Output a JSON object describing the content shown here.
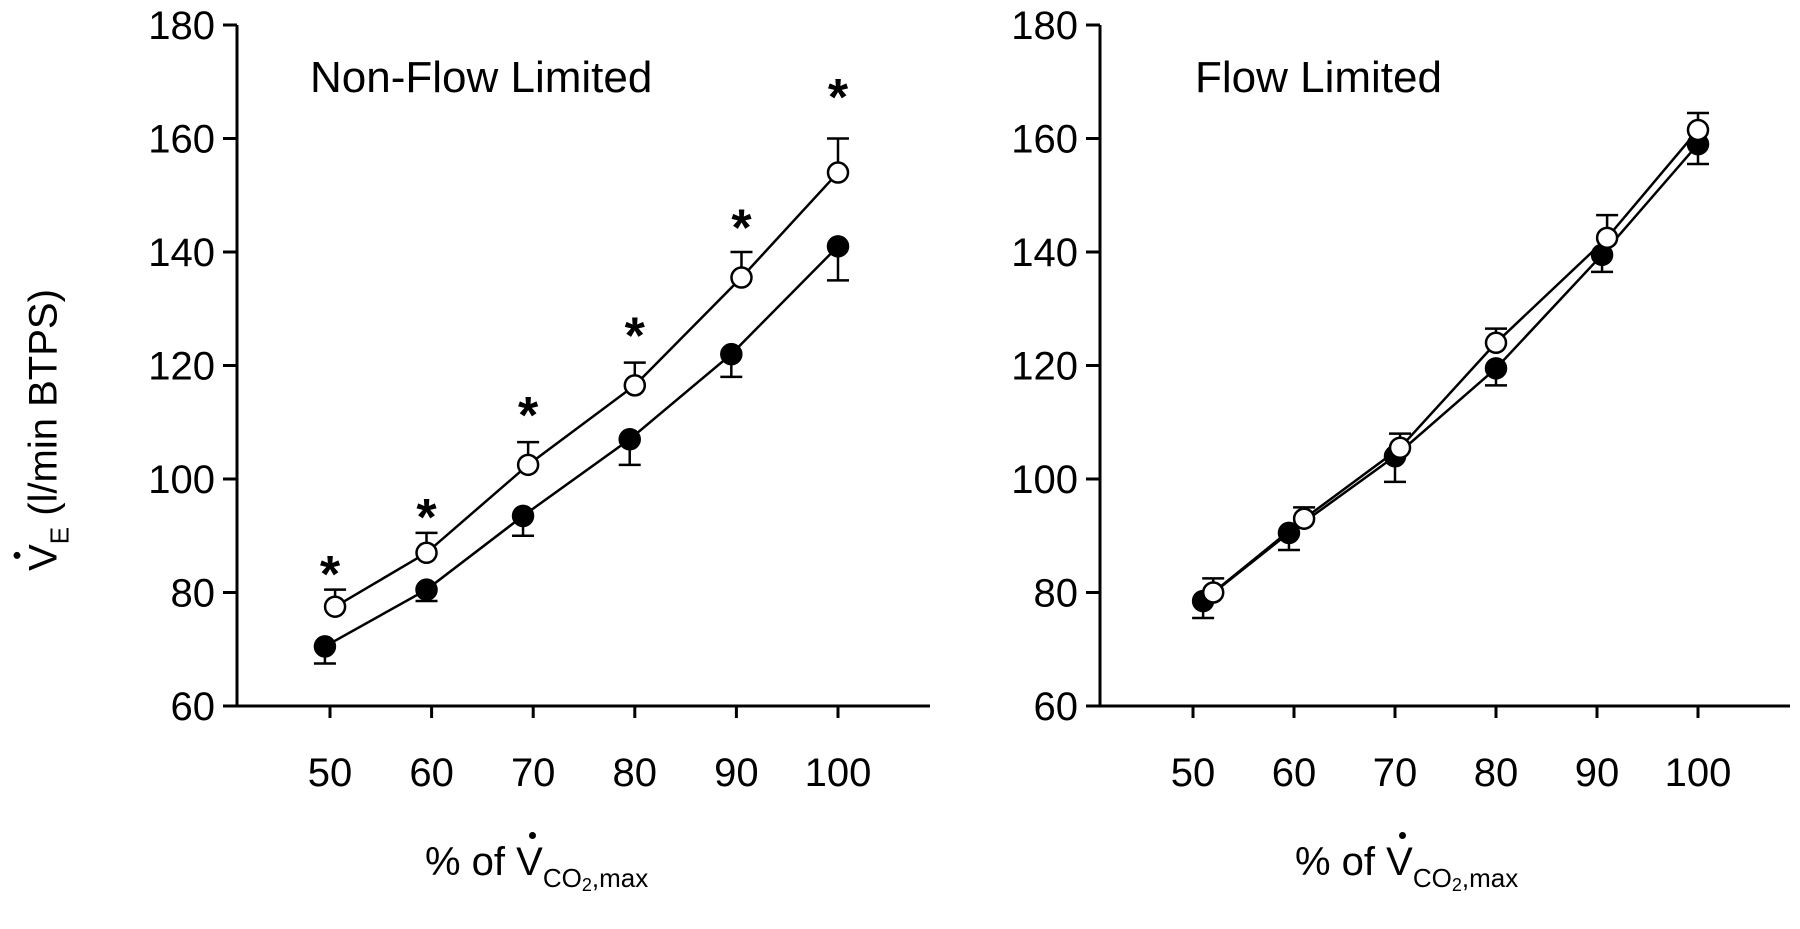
{
  "y_axis_label": {
    "v": "V",
    "sub": "E",
    "rest": " (l/min BTPS)"
  },
  "x_axis_label": {
    "prefix": "% of ",
    "v": "V",
    "sub": "CO",
    "sub2": "2",
    "sub_rest": ",max"
  },
  "chart_data": [
    {
      "type": "line",
      "title": "Non-Flow Limited",
      "ylim": [
        60,
        180
      ],
      "yticks": [
        60,
        80,
        100,
        120,
        140,
        160,
        180
      ],
      "xticks": [
        50,
        60,
        70,
        80,
        90,
        100
      ],
      "series": [
        {
          "marker": "open-circle",
          "x": [
            50.5,
            59.5,
            69.5,
            80,
            90.5,
            100
          ],
          "y": [
            77.5,
            87,
            102.5,
            116.5,
            135.5,
            154
          ],
          "err": [
            3,
            3.5,
            4,
            4,
            4.5,
            6
          ]
        },
        {
          "marker": "filled-circle",
          "x": [
            49.5,
            59.5,
            69,
            79.5,
            89.5,
            100
          ],
          "y": [
            70.5,
            80.5,
            93.5,
            107,
            122,
            141
          ],
          "err": [
            3,
            2,
            3.5,
            4.5,
            4,
            6
          ]
        }
      ],
      "annotations": [
        {
          "text": "*",
          "x": 50,
          "y": 84
        },
        {
          "text": "*",
          "x": 59.5,
          "y": 94
        },
        {
          "text": "*",
          "x": 69.5,
          "y": 112
        },
        {
          "text": "*",
          "x": 80,
          "y": 126
        },
        {
          "text": "*",
          "x": 90.5,
          "y": 145
        },
        {
          "text": "*",
          "x": 100,
          "y": 168
        }
      ]
    },
    {
      "type": "line",
      "title": "Flow Limited",
      "ylim": [
        60,
        180
      ],
      "yticks": [
        60,
        80,
        100,
        120,
        140,
        160,
        180
      ],
      "xticks": [
        50,
        60,
        70,
        80,
        90,
        100
      ],
      "series": [
        {
          "marker": "open-circle",
          "x": [
            52,
            61,
            70.5,
            80,
            91,
            100
          ],
          "y": [
            80,
            93,
            105.5,
            124,
            142.5,
            161.5
          ],
          "err": [
            2.5,
            2,
            2.5,
            2.5,
            4,
            3
          ]
        },
        {
          "marker": "filled-circle",
          "x": [
            51,
            59.5,
            70,
            80,
            90.5,
            100
          ],
          "y": [
            78.5,
            90.5,
            104,
            119.5,
            139.5,
            159
          ],
          "err": [
            3,
            3,
            4.5,
            3,
            3,
            3.5
          ]
        }
      ],
      "annotations": []
    }
  ]
}
